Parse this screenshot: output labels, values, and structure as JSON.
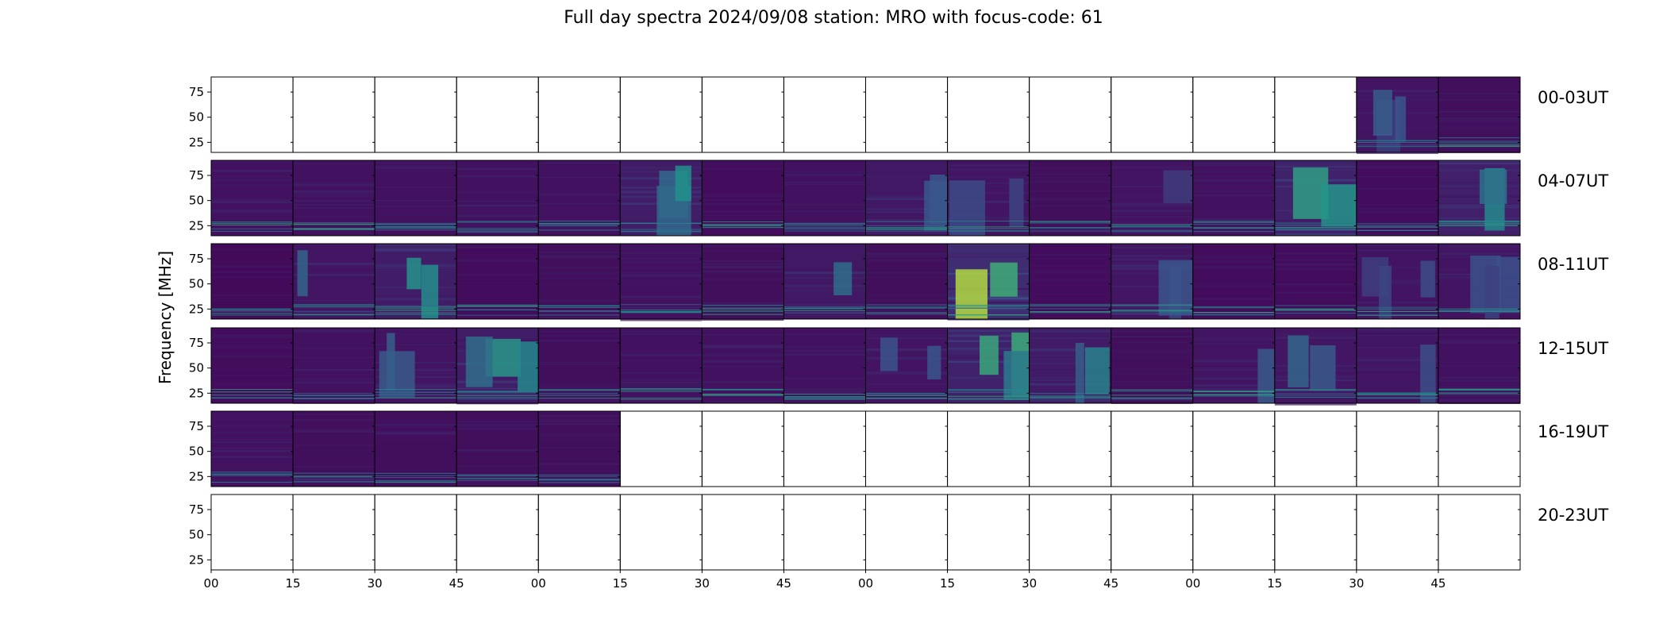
{
  "chart_data": {
    "type": "heatmap",
    "title": "Full day spectra 2024/09/08 station: MRO with focus-code: 61",
    "ylabel": "Frequency [MHz]",
    "xlabel": "",
    "y_ticks": [
      25,
      50,
      75
    ],
    "ylim": [
      15,
      90
    ],
    "x_ticks": [
      "00",
      "15",
      "30",
      "45",
      "00",
      "15",
      "30",
      "45",
      "00",
      "15",
      "30",
      "45",
      "00",
      "15",
      "30",
      "45"
    ],
    "panels_per_row": 16,
    "colormap": [
      "#440154",
      "#3b528b",
      "#21918c",
      "#5ec962",
      "#fde725"
    ],
    "rows": [
      {
        "label": "00-03UT",
        "intensity": [
          0,
          0,
          0,
          0,
          0,
          0,
          0,
          0,
          0,
          0,
          0,
          0,
          0,
          0,
          0.25,
          0.15
        ],
        "present": [
          0,
          0,
          0,
          0,
          0,
          0,
          0,
          0,
          0,
          0,
          0,
          0,
          0,
          0,
          1,
          1
        ]
      },
      {
        "label": "04-07UT",
        "intensity": [
          0.2,
          0.2,
          0.2,
          0.2,
          0.2,
          0.45,
          0.1,
          0.2,
          0.35,
          0.25,
          0.15,
          0.25,
          0.2,
          0.55,
          0.1,
          0.5
        ],
        "present": [
          1,
          1,
          1,
          1,
          1,
          1,
          1,
          1,
          1,
          1,
          1,
          1,
          1,
          1,
          1,
          1
        ]
      },
      {
        "label": "08-11UT",
        "intensity": [
          0.05,
          0.3,
          0.45,
          0.1,
          0.15,
          0.2,
          0.15,
          0.35,
          0.15,
          0.75,
          0.1,
          0.3,
          0.1,
          0.1,
          0.25,
          0.25
        ],
        "present": [
          1,
          1,
          1,
          1,
          1,
          1,
          1,
          1,
          1,
          1,
          1,
          1,
          1,
          1,
          1,
          1
        ]
      },
      {
        "label": "12-15UT",
        "intensity": [
          0.1,
          0.2,
          0.25,
          0.45,
          0.15,
          0.2,
          0.2,
          0.2,
          0.25,
          0.55,
          0.4,
          0.15,
          0.25,
          0.3,
          0.3,
          0.2
        ],
        "present": [
          1,
          1,
          1,
          1,
          1,
          1,
          1,
          1,
          1,
          1,
          1,
          1,
          1,
          1,
          1,
          1
        ]
      },
      {
        "label": "16-19UT",
        "intensity": [
          0.2,
          0.15,
          0.15,
          0.15,
          0.15,
          0,
          0,
          0,
          0,
          0,
          0,
          0,
          0,
          0,
          0,
          0
        ],
        "present": [
          1,
          1,
          1,
          1,
          1,
          0,
          0,
          0,
          0,
          0,
          0,
          0,
          0,
          0,
          0,
          0
        ]
      },
      {
        "label": "20-23UT",
        "intensity": [
          0,
          0,
          0,
          0,
          0,
          0,
          0,
          0,
          0,
          0,
          0,
          0,
          0,
          0,
          0,
          0
        ],
        "present": [
          0,
          0,
          0,
          0,
          0,
          0,
          0,
          0,
          0,
          0,
          0,
          0,
          0,
          0,
          0,
          0
        ]
      }
    ]
  }
}
